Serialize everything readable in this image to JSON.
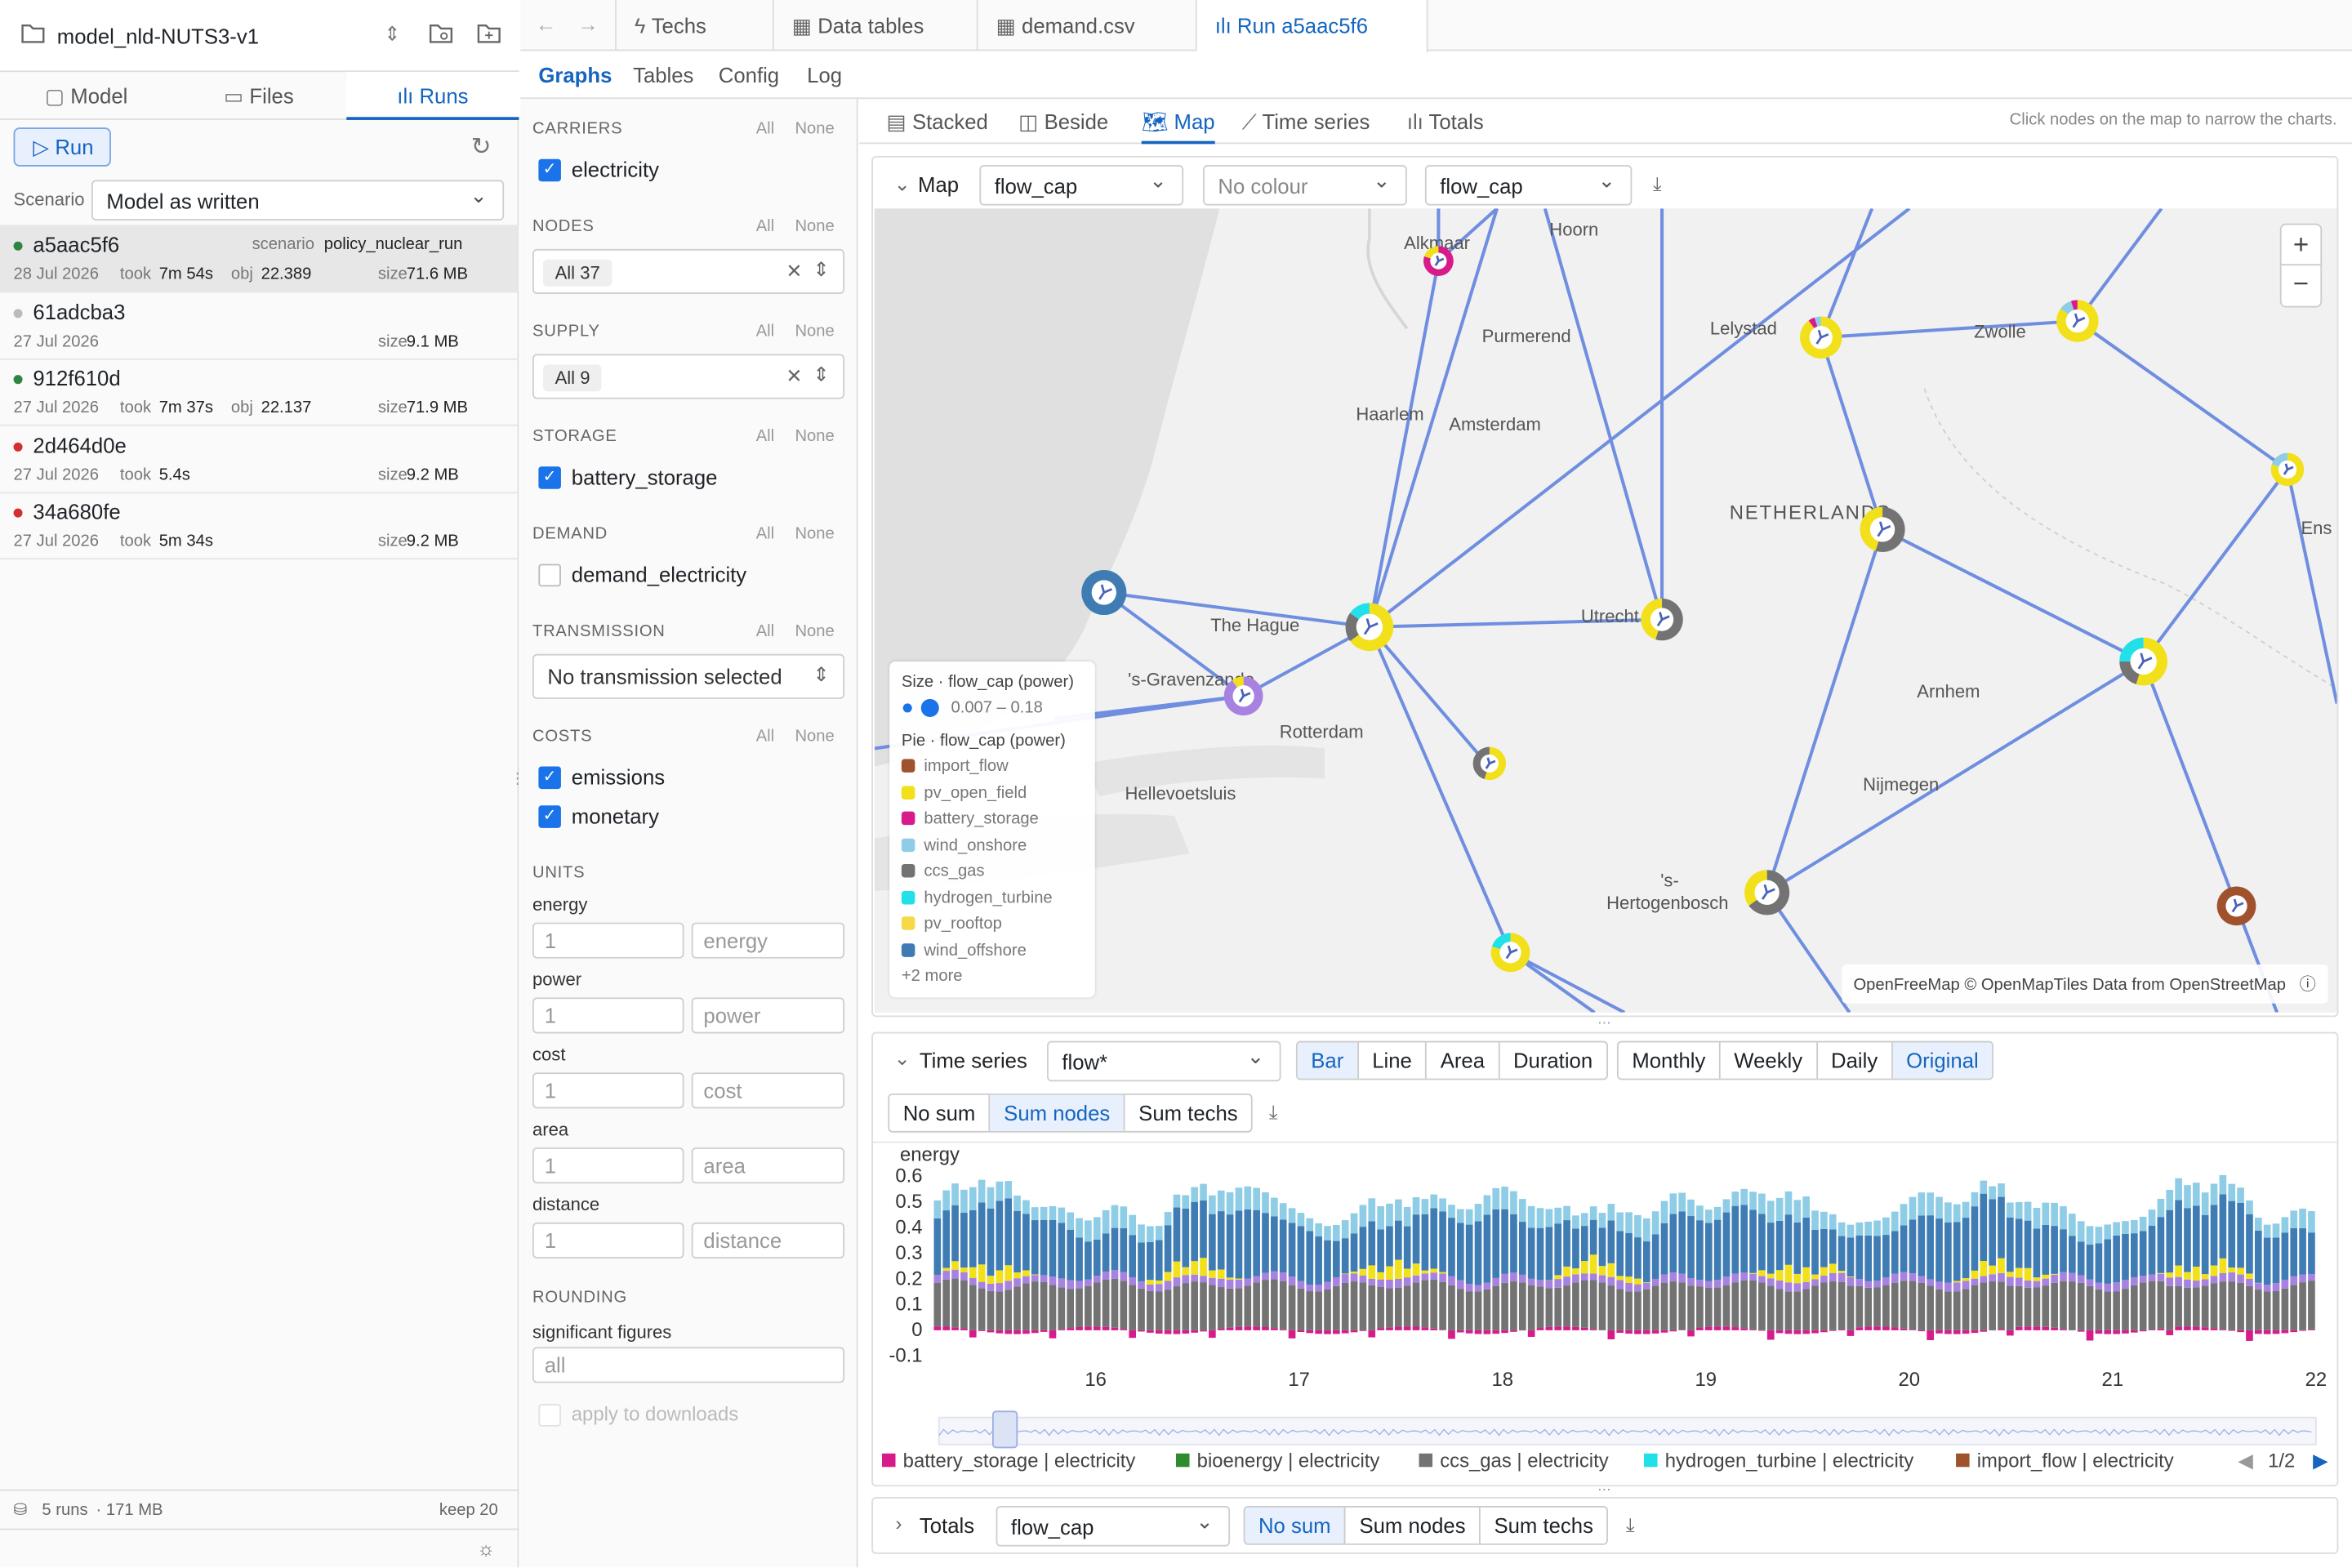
{
  "sidebar": {
    "project_name": "model_nld-NUTS3-v1",
    "tabs": [
      "Model",
      "Files",
      "Runs"
    ],
    "run_button": "Run",
    "scenario_label": "Scenario",
    "scenario_value": "Model as written",
    "runs": [
      {
        "id": "a5aac5f6",
        "status": "success",
        "status_color": "#2e8540",
        "date": "28 Jul 2026",
        "took_label": "took",
        "took": "7m 54s",
        "obj_label": "obj",
        "obj": "22.389",
        "size_label": "size",
        "size": "71.6 MB",
        "scenario_label": "scenario",
        "scenario": "policy_nuclear_run"
      },
      {
        "id": "61adcba3",
        "status": "pending",
        "status_color": "#bbbbbb",
        "date": "27 Jul 2026",
        "size_label": "size",
        "size": "9.1 MB"
      },
      {
        "id": "912f610d",
        "status": "success",
        "status_color": "#2e8540",
        "date": "27 Jul 2026",
        "took_label": "took",
        "took": "7m 37s",
        "obj_label": "obj",
        "obj": "22.137",
        "size_label": "size",
        "size": "71.9 MB"
      },
      {
        "id": "2d464d0e",
        "status": "error",
        "status_color": "#d32f2f",
        "date": "27 Jul 2026",
        "took_label": "took",
        "took": "5.4s",
        "size_label": "size",
        "size": "9.2 MB"
      },
      {
        "id": "34a680fe",
        "status": "error",
        "status_color": "#d32f2f",
        "date": "27 Jul 2026",
        "took_label": "took",
        "took": "5m 34s",
        "size_label": "size",
        "size": "9.2 MB"
      }
    ],
    "footer_runs": "5 runs",
    "footer_size": "· 171 MB",
    "footer_keep": "keep 20"
  },
  "top_tabs": [
    "Techs",
    "Data tables",
    "demand.csv",
    "Run a5aac5f6"
  ],
  "sub_tabs": [
    "Graphs",
    "Tables",
    "Config",
    "Log"
  ],
  "filters": {
    "all": "All",
    "none": "None",
    "carriers_title": "CARRIERS",
    "carriers_item": "electricity",
    "nodes_title": "NODES",
    "nodes_value": "All 37",
    "supply_title": "SUPPLY",
    "supply_value": "All 9",
    "storage_title": "STORAGE",
    "storage_item": "battery_storage",
    "demand_title": "DEMAND",
    "demand_item": "demand_electricity",
    "transmission_title": "TRANSMISSION",
    "transmission_value": "No transmission selected",
    "costs_title": "COSTS",
    "costs_items": [
      "emissions",
      "monetary"
    ],
    "units_title": "UNITS",
    "units": [
      {
        "label": "energy",
        "value": "1",
        "unit": "energy"
      },
      {
        "label": "power",
        "value": "1",
        "unit": "power"
      },
      {
        "label": "cost",
        "value": "1",
        "unit": "cost"
      },
      {
        "label": "area",
        "value": "1",
        "unit": "area"
      },
      {
        "label": "distance",
        "value": "1",
        "unit": "distance"
      }
    ],
    "rounding_title": "ROUNDING",
    "sigfig_label": "significant figures",
    "sigfig_value": "all",
    "apply_downloads": "apply to downloads"
  },
  "view_tabs": [
    "Stacked",
    "Beside",
    "Map",
    "Time series",
    "Totals"
  ],
  "view_hint": "Click nodes on the map to narrow the charts.",
  "map": {
    "title": "Map",
    "size_select": "flow_cap",
    "colour_select": "No colour",
    "pie_select": "flow_cap",
    "places": [
      "Alkmaar",
      "Hoorn",
      "Purmerend",
      "Lelystad",
      "Zwolle",
      "Haarlem",
      "Amsterdam",
      "NETHERLANDS",
      "Ens",
      "The Hague",
      "'s-Gravenzande",
      "Utrecht",
      "Rotterdam",
      "Arnhem",
      "Hellevoetsluis",
      "Nijmegen",
      "'s-",
      "Hertogenbosch"
    ],
    "legend_size_title": "Size · flow_cap (power)",
    "legend_size_range": "0.007 – 0.18",
    "legend_pie_title": "Pie · flow_cap (power)",
    "legend_items": [
      {
        "name": "import_flow",
        "color": "#a0522d"
      },
      {
        "name": "pv_open_field",
        "color": "#f2e01b"
      },
      {
        "name": "battery_storage",
        "color": "#d81b8a"
      },
      {
        "name": "wind_onshore",
        "color": "#8fcde6"
      },
      {
        "name": "ccs_gas",
        "color": "#737373"
      },
      {
        "name": "hydrogen_turbine",
        "color": "#22e0e8"
      },
      {
        "name": "pv_rooftop",
        "color": "#f5d947"
      },
      {
        "name": "wind_offshore",
        "color": "#3f7cb3"
      }
    ],
    "legend_more": "+2 more",
    "attribution": "OpenFreeMap © OpenMapTiles Data from OpenStreetMap"
  },
  "timeseries": {
    "title": "Time series",
    "variable_select": "flow*",
    "chart_types": [
      "Bar",
      "Line",
      "Area",
      "Duration"
    ],
    "active_chart_type": "Bar",
    "resolutions": [
      "Monthly",
      "Weekly",
      "Daily",
      "Original"
    ],
    "active_resolution": "Original",
    "sums": [
      "No sum",
      "Sum nodes",
      "Sum techs"
    ],
    "active_sum": "Sum nodes",
    "legend_page": "1/2"
  },
  "totals": {
    "title": "Totals",
    "variable_select": "flow_cap",
    "sums": [
      "No sum",
      "Sum nodes",
      "Sum techs"
    ],
    "active_sum": "No sum"
  },
  "chart_data": {
    "type": "bar",
    "stacked": true,
    "ylabel": "energy",
    "ylim": [
      -0.1,
      0.6
    ],
    "yticks": [
      "0.6",
      "0.5",
      "0.4",
      "0.3",
      "0.2",
      "0.1",
      "0",
      "-0.1"
    ],
    "xticks": [
      "16",
      "17",
      "18",
      "19",
      "20",
      "21",
      "22"
    ],
    "legend": "bottom",
    "series": [
      {
        "name": "battery_storage | electricity",
        "color": "#d81b8a"
      },
      {
        "name": "bioenergy | electricity",
        "color": "#2e8b2e"
      },
      {
        "name": "ccs_gas | electricity",
        "color": "#737373"
      },
      {
        "name": "hydrogen_turbine | electricity",
        "color": "#22e0e8"
      },
      {
        "name": "import_flow | electricity",
        "color": "#a0522d"
      }
    ],
    "hidden_series_colors": {
      "nuclear": "#a782e0",
      "pv": "#f2e01b",
      "wind_offshore": "#3f7cb3",
      "wind_onshore": "#8fcde6"
    },
    "values": {
      "x_start": 15.2,
      "x_end": 22.0,
      "ccs_gas_approx": 0.17,
      "nuclear_approx": 0.03,
      "wind_offshore_approx": 0.2,
      "wind_onshore_approx": 0.07,
      "battery_storage_range": [
        -0.05,
        0.02
      ]
    }
  }
}
